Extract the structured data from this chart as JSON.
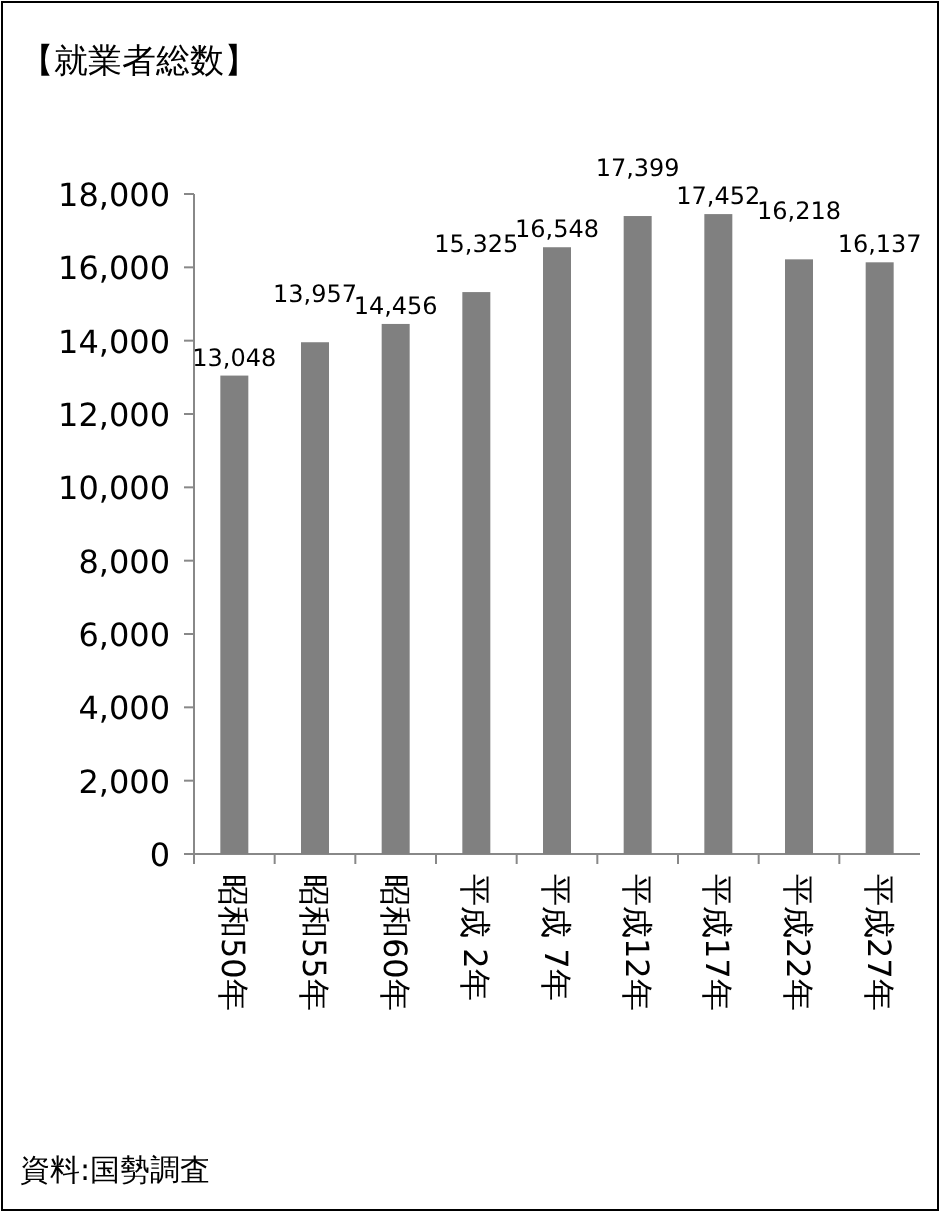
{
  "chart_data": {
    "type": "bar",
    "title": "【就業者総数】",
    "categories": [
      "昭和50年",
      "昭和55年",
      "昭和60年",
      "平成 2年",
      "平成 7年",
      "平成12年",
      "平成17年",
      "平成22年",
      "平成27年"
    ],
    "values": [
      13048,
      13957,
      14456,
      15325,
      16548,
      17399,
      17452,
      16218,
      16137
    ],
    "value_labels": [
      "13,048",
      "13,957",
      "14,456",
      "15,325",
      "16,548",
      "17,399",
      "17,452",
      "16,218",
      "16,137"
    ],
    "color": "#808080",
    "ylim": [
      0,
      18000
    ],
    "yticks": [
      0,
      {
        "value": 2000,
        "label": "2,000"
      },
      {
        "value": 4000,
        "label": "4,000"
      },
      {
        "value": 6000,
        "label": "6,000"
      },
      {
        "value": 8000,
        "label": "8,000"
      },
      {
        "value": 10000,
        "label": "10,000"
      },
      {
        "value": 12000,
        "label": "12,000"
      },
      {
        "value": 14000,
        "label": "14,000"
      },
      {
        "value": 16000,
        "label": "16,000"
      },
      {
        "value": 18000,
        "label": "18,000"
      }
    ],
    "annotations": [
      "資料:国勢調査"
    ]
  }
}
